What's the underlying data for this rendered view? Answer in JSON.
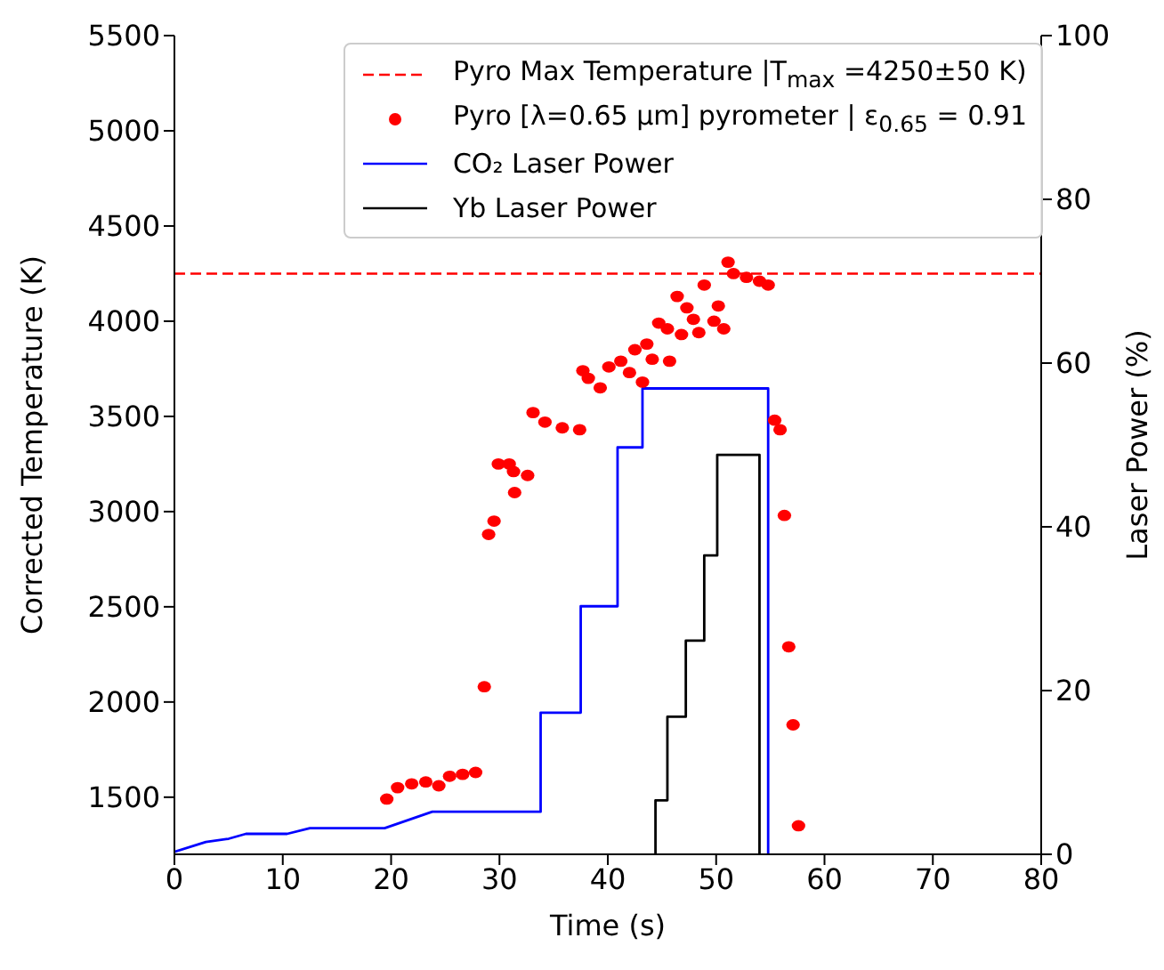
{
  "chart_data": {
    "type": "scatter",
    "xlabel": "Time (s)",
    "ylabel": "Corrected Temperature (K)",
    "y2label": "Laser Power (%)",
    "xlim": [
      0,
      80
    ],
    "xticks": [
      0,
      10,
      20,
      30,
      40,
      50,
      60,
      70,
      80
    ],
    "ylim": [
      1200,
      5500
    ],
    "yticks": [
      1500,
      2000,
      2500,
      3000,
      3500,
      4000,
      4500,
      5000,
      5500
    ],
    "y2lim": [
      0,
      100
    ],
    "y2ticks": [
      0,
      20,
      40,
      60,
      80,
      100
    ],
    "grid": false,
    "legend": "top right",
    "ref_lines": [
      {
        "axis": "y",
        "value": 4250,
        "label": "Pyro Max Temperature |T$_{max}$ =4250±50 K)",
        "color": "#ff0000",
        "line_style": "dashed"
      }
    ],
    "series": [
      {
        "name": "Pyro [λ=0.65 µm] pyrometer | ε$_{0.65}$ = 0.91",
        "color": "#ff0000",
        "marker": "circle",
        "x": [
          19.6,
          20.6,
          21.9,
          23.2,
          24.4,
          25.4,
          26.6,
          27.8,
          28.6,
          29,
          29.5,
          29.9,
          31.3,
          31.4,
          30.9,
          32.6,
          33.1,
          34.2,
          35.8,
          37.4,
          37.7,
          38.2,
          39.3,
          40.1,
          41.2,
          42,
          42.5,
          43.6,
          43.2,
          44.1,
          45.7,
          44.7,
          45.5,
          46.4,
          47.3,
          47.9,
          46.8,
          48.4,
          48.9,
          49.8,
          50.2,
          50.7,
          51.1,
          51.6,
          52.8,
          54.0,
          54.8,
          55.4,
          55.9,
          56.3,
          56.7,
          57.1,
          57.6
        ],
        "values": [
          1490,
          1550,
          1570,
          1580,
          1560,
          1610,
          1620,
          1630,
          2080,
          2880,
          2950,
          3250,
          3210,
          3100,
          3250,
          3190,
          3520,
          3470,
          3440,
          3430,
          3740,
          3700,
          3650,
          3760,
          3790,
          3730,
          3850,
          3880,
          3680,
          3800,
          3790,
          3990,
          3960,
          4130,
          4070,
          4010,
          3930,
          3940,
          4190,
          4000,
          4080,
          3960,
          4310,
          4250,
          4230,
          4210,
          4190,
          3480,
          3430,
          2980,
          2290,
          1880,
          1350
        ]
      },
      {
        "name": "CO₂ Laser Power",
        "type": "line",
        "axis": "y2",
        "color": "#0000ff",
        "marker": "none",
        "line_style": "solid",
        "x": [
          0,
          2.9,
          5,
          6.6,
          10.4,
          12.5,
          19.4,
          23.8,
          33.8,
          33.8,
          37.5,
          37.5,
          40.9,
          40.9,
          43.2,
          43.2,
          54.8,
          54.8
        ],
        "values": [
          0.3,
          1.5,
          1.9,
          2.5,
          2.5,
          3.2,
          3.2,
          5.2,
          5.2,
          17.3,
          17.3,
          30.3,
          30.3,
          49.7,
          49.7,
          56.9,
          56.9,
          0
        ]
      },
      {
        "name": "Yb Laser Power",
        "type": "line",
        "axis": "y2",
        "color": "#000000",
        "marker": "none",
        "line_style": "solid",
        "x": [
          44.4,
          44.4,
          45.5,
          45.5,
          47.2,
          47.2,
          48.9,
          48.9,
          50.1,
          50.1,
          54.0,
          54.0
        ],
        "values": [
          0,
          6.6,
          6.6,
          16.8,
          16.8,
          26.1,
          26.1,
          36.5,
          36.5,
          48.8,
          48.8,
          0
        ]
      }
    ]
  }
}
